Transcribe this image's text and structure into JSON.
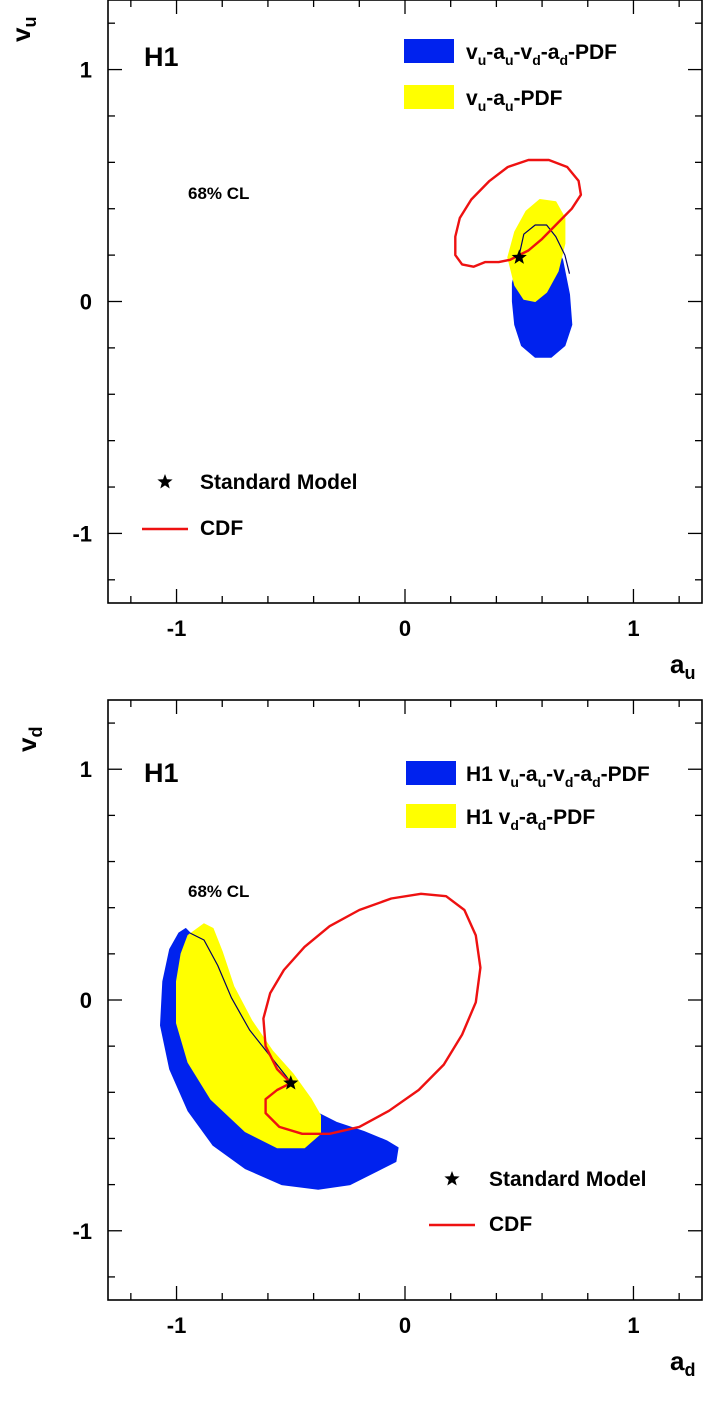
{
  "chart_data": [
    {
      "type": "contour",
      "experiment_label": "H1",
      "confidence_label": "68% CL",
      "xlabel": "a_u",
      "ylabel": "v_u",
      "xlim": [
        -1.3,
        1.3
      ],
      "ylim": [
        -1.3,
        1.3
      ],
      "x_ticks": [
        "-1",
        "0",
        "1"
      ],
      "y_ticks": [
        "-1",
        "0",
        "1"
      ],
      "colors": {
        "blue": "#0022ee",
        "yellow": "#ffff00",
        "cdf": "#ee1111",
        "thin": "#000066"
      },
      "legend": {
        "fits": [
          {
            "name": "v_u-a_u-v_d-a_d-PDF",
            "color": "#0022ee"
          },
          {
            "name": "v_u-a_u-PDF",
            "color": "#ffff00"
          }
        ],
        "markers": [
          {
            "name": "Standard Model",
            "symbol": "★"
          },
          {
            "name": "CDF",
            "color": "#ee1111"
          }
        ]
      },
      "standard_model": [
        0.5,
        0.19
      ],
      "series": [
        {
          "name": "v_u-a_u-v_d-a_d-PDF",
          "kind": "fill",
          "color": "#0022ee",
          "points": [
            [
              0.49,
              0.15
            ],
            [
              0.5,
              0.24
            ],
            [
              0.53,
              0.3
            ],
            [
              0.58,
              0.32
            ],
            [
              0.64,
              0.28
            ],
            [
              0.69,
              0.18
            ],
            [
              0.72,
              0.03
            ],
            [
              0.73,
              -0.1
            ],
            [
              0.7,
              -0.19
            ],
            [
              0.64,
              -0.24
            ],
            [
              0.57,
              -0.24
            ],
            [
              0.51,
              -0.19
            ],
            [
              0.48,
              -0.1
            ],
            [
              0.47,
              0.0
            ],
            [
              0.47,
              0.08
            ]
          ]
        },
        {
          "name": "v_u-a_u-PDF",
          "kind": "fill",
          "color": "#ffff00",
          "points": [
            [
              0.45,
              0.19
            ],
            [
              0.48,
              0.3
            ],
            [
              0.53,
              0.39
            ],
            [
              0.59,
              0.44
            ],
            [
              0.66,
              0.43
            ],
            [
              0.7,
              0.36
            ],
            [
              0.7,
              0.25
            ],
            [
              0.67,
              0.13
            ],
            [
              0.62,
              0.04
            ],
            [
              0.57,
              0.0
            ],
            [
              0.52,
              0.01
            ],
            [
              0.48,
              0.07
            ]
          ]
        },
        {
          "name": "thin",
          "kind": "line",
          "color": "#000066",
          "points": [
            [
              0.5,
              0.2
            ],
            [
              0.52,
              0.29
            ],
            [
              0.57,
              0.33
            ],
            [
              0.62,
              0.33
            ],
            [
              0.66,
              0.28
            ],
            [
              0.7,
              0.2
            ],
            [
              0.72,
              0.12
            ]
          ]
        },
        {
          "name": "CDF",
          "kind": "line",
          "color": "#ee1111",
          "closed": true,
          "points": [
            [
              0.5,
              0.2
            ],
            [
              0.54,
              0.22
            ],
            [
              0.6,
              0.27
            ],
            [
              0.67,
              0.34
            ],
            [
              0.73,
              0.4
            ],
            [
              0.77,
              0.46
            ],
            [
              0.76,
              0.52
            ],
            [
              0.71,
              0.58
            ],
            [
              0.63,
              0.61
            ],
            [
              0.54,
              0.61
            ],
            [
              0.45,
              0.58
            ],
            [
              0.37,
              0.52
            ],
            [
              0.29,
              0.44
            ],
            [
              0.24,
              0.36
            ],
            [
              0.22,
              0.28
            ],
            [
              0.22,
              0.2
            ],
            [
              0.25,
              0.16
            ],
            [
              0.3,
              0.15
            ],
            [
              0.35,
              0.17
            ],
            [
              0.41,
              0.17
            ],
            [
              0.46,
              0.18
            ]
          ]
        }
      ]
    },
    {
      "type": "contour",
      "experiment_label": "H1",
      "confidence_label": "68% CL",
      "xlabel": "a_d",
      "ylabel": "v_d",
      "xlim": [
        -1.3,
        1.3
      ],
      "ylim": [
        -1.3,
        1.3
      ],
      "x_ticks": [
        "-1",
        "0",
        "1"
      ],
      "y_ticks": [
        "-1",
        "0",
        "1"
      ],
      "colors": {
        "blue": "#0022ee",
        "yellow": "#ffff00",
        "cdf": "#ee1111",
        "thin": "#000066"
      },
      "legend": {
        "fits": [
          {
            "name": "H1 v_u-a_u-v_d-a_d-PDF",
            "color": "#0022ee"
          },
          {
            "name": "H1 v_d-a_d-PDF",
            "color": "#ffff00"
          }
        ],
        "markers": [
          {
            "name": "Standard Model",
            "symbol": "★"
          },
          {
            "name": "CDF",
            "color": "#ee1111"
          }
        ]
      },
      "standard_model": [
        -0.5,
        -0.36
      ],
      "series": [
        {
          "name": "H1 v_u-a_u-v_d-a_d-PDF",
          "kind": "fill",
          "color": "#0022ee",
          "points": [
            [
              -0.99,
              0.29
            ],
            [
              -0.96,
              0.31
            ],
            [
              -0.92,
              0.27
            ],
            [
              -0.87,
              0.19
            ],
            [
              -0.8,
              0.05
            ],
            [
              -0.72,
              -0.1
            ],
            [
              -0.62,
              -0.24
            ],
            [
              -0.52,
              -0.37
            ],
            [
              -0.42,
              -0.47
            ],
            [
              -0.3,
              -0.53
            ],
            [
              -0.18,
              -0.57
            ],
            [
              -0.08,
              -0.61
            ],
            [
              -0.03,
              -0.64
            ],
            [
              -0.04,
              -0.7
            ],
            [
              -0.12,
              -0.74
            ],
            [
              -0.24,
              -0.8
            ],
            [
              -0.38,
              -0.82
            ],
            [
              -0.54,
              -0.8
            ],
            [
              -0.7,
              -0.73
            ],
            [
              -0.84,
              -0.63
            ],
            [
              -0.95,
              -0.48
            ],
            [
              -1.03,
              -0.3
            ],
            [
              -1.07,
              -0.11
            ],
            [
              -1.06,
              0.08
            ],
            [
              -1.03,
              0.22
            ]
          ]
        },
        {
          "name": "H1 v_d-a_d-PDF",
          "kind": "fill",
          "color": "#ffff00",
          "points": [
            [
              -0.95,
              0.28
            ],
            [
              -0.88,
              0.33
            ],
            [
              -0.84,
              0.31
            ],
            [
              -0.8,
              0.21
            ],
            [
              -0.75,
              0.06
            ],
            [
              -0.67,
              -0.09
            ],
            [
              -0.58,
              -0.22
            ],
            [
              -0.49,
              -0.32
            ],
            [
              -0.41,
              -0.43
            ],
            [
              -0.37,
              -0.5
            ],
            [
              -0.37,
              -0.58
            ],
            [
              -0.44,
              -0.64
            ],
            [
              -0.56,
              -0.64
            ],
            [
              -0.7,
              -0.57
            ],
            [
              -0.85,
              -0.43
            ],
            [
              -0.95,
              -0.27
            ],
            [
              -1.0,
              -0.1
            ],
            [
              -1.0,
              0.08
            ],
            [
              -0.98,
              0.2
            ]
          ]
        },
        {
          "name": "thin",
          "kind": "line",
          "color": "#000066",
          "points": [
            [
              -0.94,
              0.29
            ],
            [
              -0.88,
              0.26
            ],
            [
              -0.82,
              0.15
            ],
            [
              -0.76,
              0.01
            ],
            [
              -0.68,
              -0.13
            ],
            [
              -0.6,
              -0.23
            ],
            [
              -0.52,
              -0.33
            ],
            [
              -0.5,
              -0.36
            ]
          ]
        },
        {
          "name": "CDF",
          "kind": "line",
          "color": "#ee1111",
          "closed": true,
          "points": [
            [
              -0.5,
              -0.36
            ],
            [
              -0.56,
              -0.3
            ],
            [
              -0.61,
              -0.2
            ],
            [
              -0.62,
              -0.08
            ],
            [
              -0.59,
              0.03
            ],
            [
              -0.53,
              0.13
            ],
            [
              -0.44,
              0.23
            ],
            [
              -0.33,
              0.32
            ],
            [
              -0.2,
              0.39
            ],
            [
              -0.06,
              0.44
            ],
            [
              0.07,
              0.46
            ],
            [
              0.18,
              0.45
            ],
            [
              0.26,
              0.39
            ],
            [
              0.31,
              0.28
            ],
            [
              0.33,
              0.14
            ],
            [
              0.31,
              -0.01
            ],
            [
              0.25,
              -0.15
            ],
            [
              0.17,
              -0.28
            ],
            [
              0.06,
              -0.39
            ],
            [
              -0.07,
              -0.48
            ],
            [
              -0.2,
              -0.55
            ],
            [
              -0.33,
              -0.58
            ],
            [
              -0.45,
              -0.58
            ],
            [
              -0.55,
              -0.55
            ],
            [
              -0.61,
              -0.49
            ],
            [
              -0.61,
              -0.43
            ],
            [
              -0.56,
              -0.39
            ]
          ]
        }
      ]
    }
  ]
}
